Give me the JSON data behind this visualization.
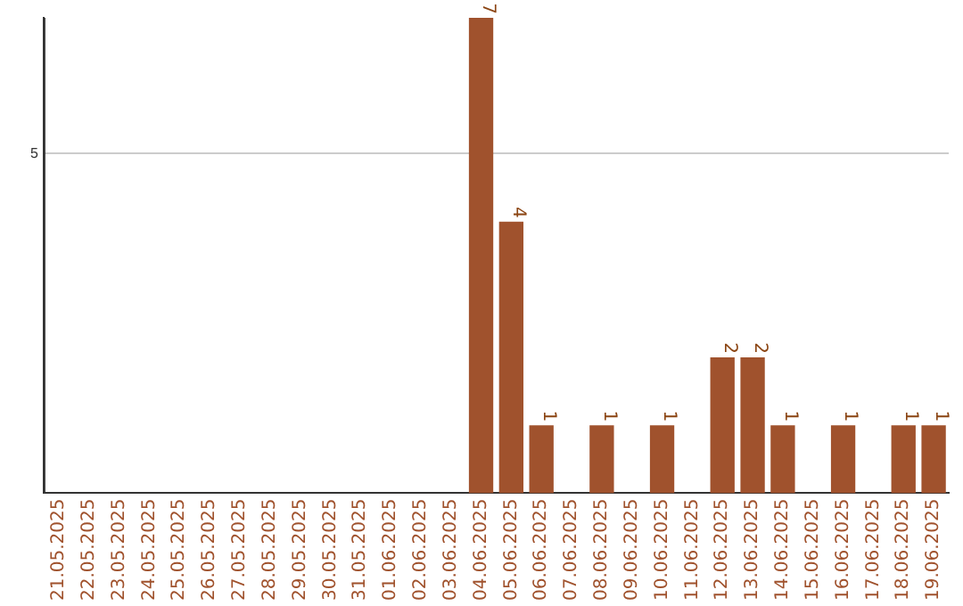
{
  "chart_data": {
    "type": "bar",
    "categories": [
      "21.05.2025",
      "22.05.2025",
      "23.05.2025",
      "24.05.2025",
      "25.05.2025",
      "26.05.2025",
      "27.05.2025",
      "28.05.2025",
      "29.05.2025",
      "30.05.2025",
      "31.05.2025",
      "01.06.2025",
      "02.06.2025",
      "03.06.2025",
      "04.06.2025",
      "05.06.2025",
      "06.06.2025",
      "07.06.2025",
      "08.06.2025",
      "09.06.2025",
      "10.06.2025",
      "11.06.2025",
      "12.06.2025",
      "13.06.2025",
      "14.06.2025",
      "15.06.2025",
      "16.06.2025",
      "17.06.2025",
      "18.06.2025",
      "19.06.2025"
    ],
    "values": [
      null,
      null,
      null,
      null,
      null,
      null,
      null,
      null,
      null,
      null,
      null,
      null,
      null,
      null,
      7,
      4,
      1,
      null,
      1,
      null,
      1,
      null,
      2,
      2,
      1,
      null,
      1,
      null,
      1,
      1
    ],
    "value_labels": [
      null,
      null,
      null,
      null,
      null,
      null,
      null,
      null,
      null,
      null,
      null,
      null,
      null,
      null,
      "7",
      "4",
      "1",
      null,
      "1",
      null,
      "1",
      null,
      "2",
      "2",
      "1",
      null,
      "1",
      null,
      "1",
      "1"
    ],
    "color": "#a0522d",
    "ylim": [
      0,
      7
    ],
    "yticks": [
      5
    ],
    "grid": "y",
    "legend": false
  }
}
